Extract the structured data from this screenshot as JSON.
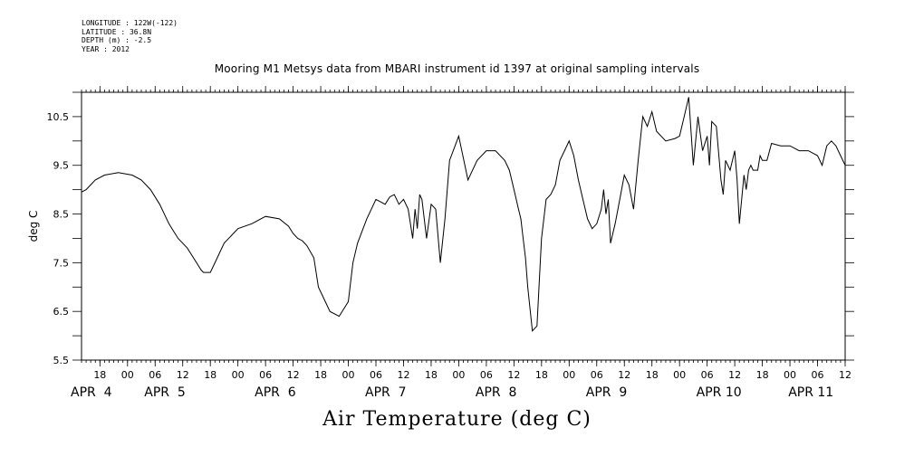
{
  "meta": {
    "longitude": "LONGITUDE : 122W(-122)",
    "latitude": "LATITUDE : 36.8N",
    "depth": "DEPTH (m) : -2.5",
    "year": "YEAR : 2012"
  },
  "title": "Mooring M1 Metsys data from MBARI instrument id 1397 at original sampling intervals",
  "bottom_title": "Air Temperature (deg C)",
  "chart_data": {
    "type": "line",
    "title": "Mooring M1 Metsys data from MBARI instrument id 1397 at original sampling intervals",
    "ylabel": "deg C",
    "xlabel": "",
    "ylim": [
      5.5,
      11.0
    ],
    "xlim_hours": [
      14,
      180
    ],
    "grid": false,
    "y_ticks": [
      "10.5",
      "9.5",
      "8.5",
      "7.5",
      "6.5",
      "5.5"
    ],
    "y_tick_values": [
      10.5,
      9.5,
      8.5,
      7.5,
      6.5,
      5.5
    ],
    "hour_ticks": [
      {
        "h": 18,
        "label": "18"
      },
      {
        "h": 24,
        "label": "00"
      },
      {
        "h": 30,
        "label": "06"
      },
      {
        "h": 36,
        "label": "12"
      },
      {
        "h": 42,
        "label": "18"
      },
      {
        "h": 48,
        "label": "00"
      },
      {
        "h": 54,
        "label": "06"
      },
      {
        "h": 60,
        "label": "12"
      },
      {
        "h": 66,
        "label": "18"
      },
      {
        "h": 72,
        "label": "00"
      },
      {
        "h": 78,
        "label": "06"
      },
      {
        "h": 84,
        "label": "12"
      },
      {
        "h": 90,
        "label": "18"
      },
      {
        "h": 96,
        "label": "00"
      },
      {
        "h": 102,
        "label": "06"
      },
      {
        "h": 108,
        "label": "12"
      },
      {
        "h": 114,
        "label": "18"
      },
      {
        "h": 120,
        "label": "00"
      },
      {
        "h": 126,
        "label": "06"
      },
      {
        "h": 132,
        "label": "12"
      },
      {
        "h": 138,
        "label": "18"
      },
      {
        "h": 144,
        "label": "00"
      },
      {
        "h": 150,
        "label": "06"
      },
      {
        "h": 156,
        "label": "12"
      },
      {
        "h": 162,
        "label": "18"
      },
      {
        "h": 168,
        "label": "00"
      },
      {
        "h": 174,
        "label": "06"
      },
      {
        "h": 180,
        "label": "12"
      }
    ],
    "date_labels": [
      {
        "h": 14,
        "label": "APR  4"
      },
      {
        "h": 30,
        "label": "APR  5"
      },
      {
        "h": 54,
        "label": "APR  6"
      },
      {
        "h": 78,
        "label": "APR  7"
      },
      {
        "h": 102,
        "label": "APR  8"
      },
      {
        "h": 126,
        "label": "APR  9"
      },
      {
        "h": 150,
        "label": "APR 10"
      },
      {
        "h": 170,
        "label": "APR 11"
      }
    ],
    "series": [
      {
        "x": [
          14.0,
          15.0,
          17.0,
          19.0,
          22.0,
          25.0,
          27.0,
          29.0,
          31.0,
          33.0,
          35.0,
          37.0,
          39.0,
          40.0,
          40.5,
          41.0,
          42.0,
          43.0,
          45.0,
          48.0,
          51.0,
          54.0,
          57.0,
          59.0,
          60.0,
          61.0,
          62.0,
          63.0,
          64.5,
          65.5,
          66.5,
          68.0,
          70.0,
          72.0,
          73.0,
          74.0,
          76.0,
          78.0,
          79.0,
          80.0,
          81.0,
          82.0,
          83.0,
          84.0,
          85.0,
          86.0,
          86.5,
          87.0,
          87.5,
          88.0,
          89.0,
          90.0,
          91.0,
          92.0,
          93.0,
          94.0,
          96.0,
          98.0,
          100.0,
          102.0,
          104.0,
          106.0,
          107.0,
          108.0,
          108.5,
          109.0,
          109.5,
          110.0,
          110.5,
          111.0,
          112.0,
          113.0,
          114.0,
          115.0,
          116.0,
          117.0,
          118.0,
          119.0,
          120.0,
          121.0,
          122.0,
          123.0,
          124.0,
          125.0,
          126.0,
          127.0,
          127.5,
          128.0,
          128.5,
          129.0,
          129.5,
          130.0,
          131.0,
          132.0,
          133.0,
          134.0,
          135.0,
          136.0,
          137.0,
          138.0,
          139.0,
          141.0,
          143.0,
          144.0,
          145.0,
          146.0,
          147.0,
          148.0,
          149.0,
          150.0,
          150.5,
          151.0,
          152.0,
          153.0,
          153.5,
          154.0,
          155.0,
          156.0,
          156.5,
          157.0,
          158.0,
          158.5,
          159.0,
          159.5,
          160.0,
          161.0,
          161.5,
          162.0,
          163.0,
          164.0,
          166.0,
          168.0,
          170.0,
          172.0,
          174.0,
          175.0,
          176.0,
          177.0,
          178.0,
          179.0,
          180.0
        ],
        "y": [
          8.95,
          9.0,
          9.2,
          9.3,
          9.35,
          9.3,
          9.2,
          9.0,
          8.7,
          8.3,
          8.0,
          7.8,
          7.5,
          7.35,
          7.3,
          7.3,
          7.3,
          7.5,
          7.9,
          8.2,
          8.3,
          8.45,
          8.4,
          8.25,
          8.1,
          8.0,
          7.95,
          7.85,
          7.6,
          7.0,
          6.8,
          6.5,
          6.4,
          6.7,
          7.5,
          7.9,
          8.4,
          8.8,
          8.75,
          8.7,
          8.85,
          8.9,
          8.7,
          8.8,
          8.6,
          8.0,
          8.6,
          8.2,
          8.9,
          8.8,
          8.0,
          8.7,
          8.6,
          7.5,
          8.4,
          9.6,
          10.1,
          9.2,
          9.6,
          9.8,
          9.8,
          9.6,
          9.4,
          9.0,
          8.8,
          8.6,
          8.4,
          8.0,
          7.6,
          7.0,
          6.1,
          6.2,
          8.0,
          8.8,
          8.9,
          9.1,
          9.6,
          9.8,
          10.0,
          9.7,
          9.2,
          8.8,
          8.4,
          8.2,
          8.3,
          8.6,
          9.0,
          8.5,
          8.8,
          7.9,
          8.1,
          8.3,
          8.8,
          9.3,
          9.1,
          8.6,
          9.6,
          10.5,
          10.3,
          10.6,
          10.2,
          10.0,
          10.05,
          10.1,
          10.5,
          10.9,
          9.5,
          10.5,
          9.8,
          10.1,
          9.5,
          10.4,
          10.3,
          9.2,
          8.9,
          9.6,
          9.4,
          9.8,
          9.2,
          8.3,
          9.3,
          9.0,
          9.4,
          9.5,
          9.4,
          9.4,
          9.7,
          9.6,
          9.6,
          9.95,
          9.9,
          9.9,
          9.8,
          9.8,
          9.7,
          9.5,
          9.9,
          10.0,
          9.9,
          9.7,
          9.5
        ]
      }
    ]
  }
}
